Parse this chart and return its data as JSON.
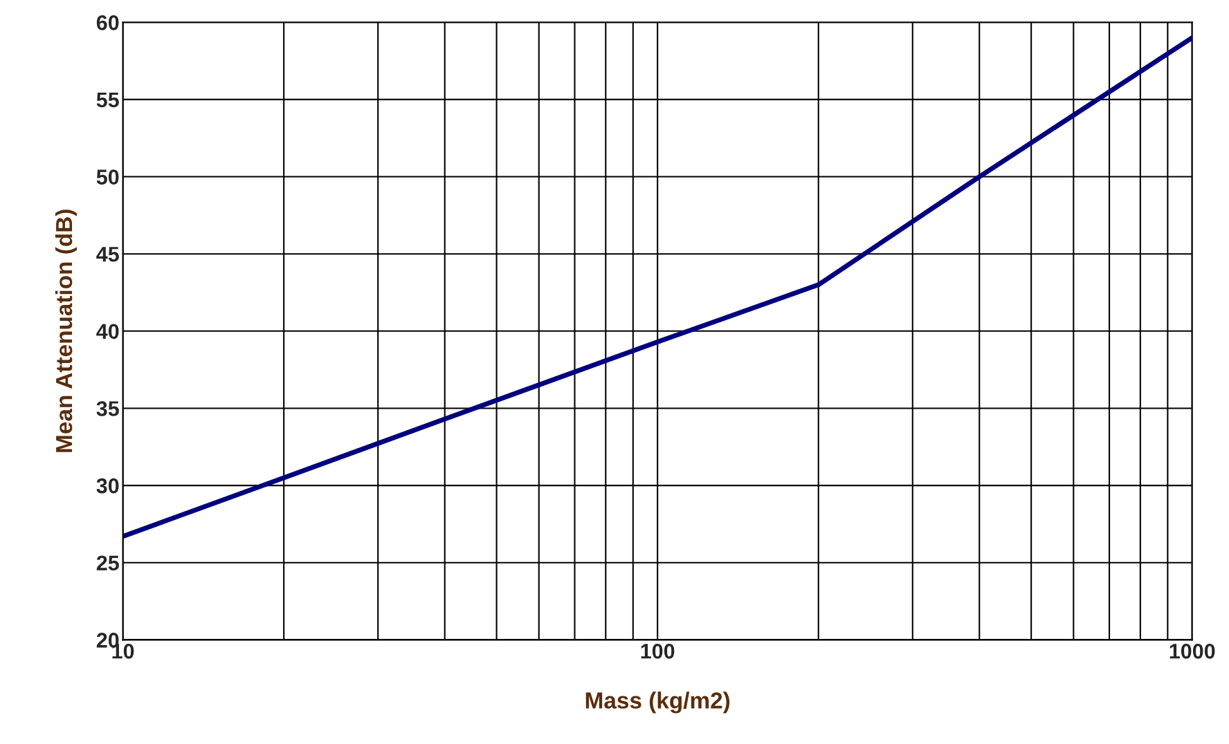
{
  "chart_data": {
    "type": "line",
    "xlabel": "Mass (kg/m2)",
    "ylabel": "Mean Attenuation (dB)",
    "x": [
      10,
      20,
      40,
      100,
      200,
      400,
      1000
    ],
    "series": [
      {
        "color": "#000080",
        "values": [
          26.7,
          30.5,
          34.3,
          39.3,
          43.0,
          50.0,
          59.0
        ]
      }
    ],
    "log": "x",
    "xlim": [
      10,
      1000
    ],
    "xticks": [
      10,
      100,
      1000
    ],
    "ylim": [
      20,
      60
    ],
    "yticks": [
      20,
      25,
      30,
      35,
      40,
      45,
      50,
      55,
      60
    ],
    "grid": true,
    "marker": "none",
    "line_style": "solid"
  }
}
